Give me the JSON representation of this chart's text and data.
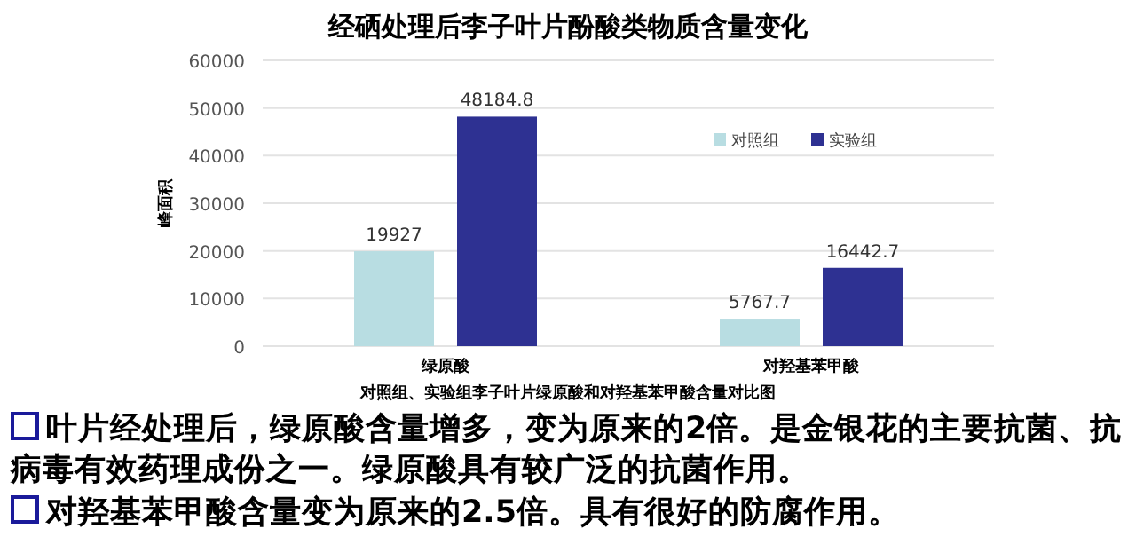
{
  "chart_data": {
    "type": "bar",
    "title": "经硒处理后李子叶片酚酸类物质含量变化",
    "ylabel": "峰面积",
    "categories": [
      "绿原酸",
      "对羟基苯甲酸"
    ],
    "series": [
      {
        "name": "对照组",
        "color": "#b8dde2",
        "values": [
          19927,
          5767.7
        ]
      },
      {
        "name": "实验组",
        "color": "#2e3192",
        "values": [
          48184.8,
          16442.7
        ]
      }
    ],
    "ylim": [
      0,
      60000
    ],
    "yticks": [
      0,
      10000,
      20000,
      30000,
      40000,
      50000,
      60000
    ],
    "grid": "y",
    "legend": "right",
    "data_labels": true,
    "annotations": [
      "对照组、实验组李子叶片绿原酸和对羟基苯甲酸含量对比图",
      "叶片经处理后，绿原酸含量增多，变为原来的2倍。是金银花的主要抗菌、抗病毒有效药理成份之一。绿原酸具有较广泛的抗菌作用。",
      "对羟基苯甲酸含量变为原来的2.5倍。具有很好的防腐作用。"
    ]
  }
}
